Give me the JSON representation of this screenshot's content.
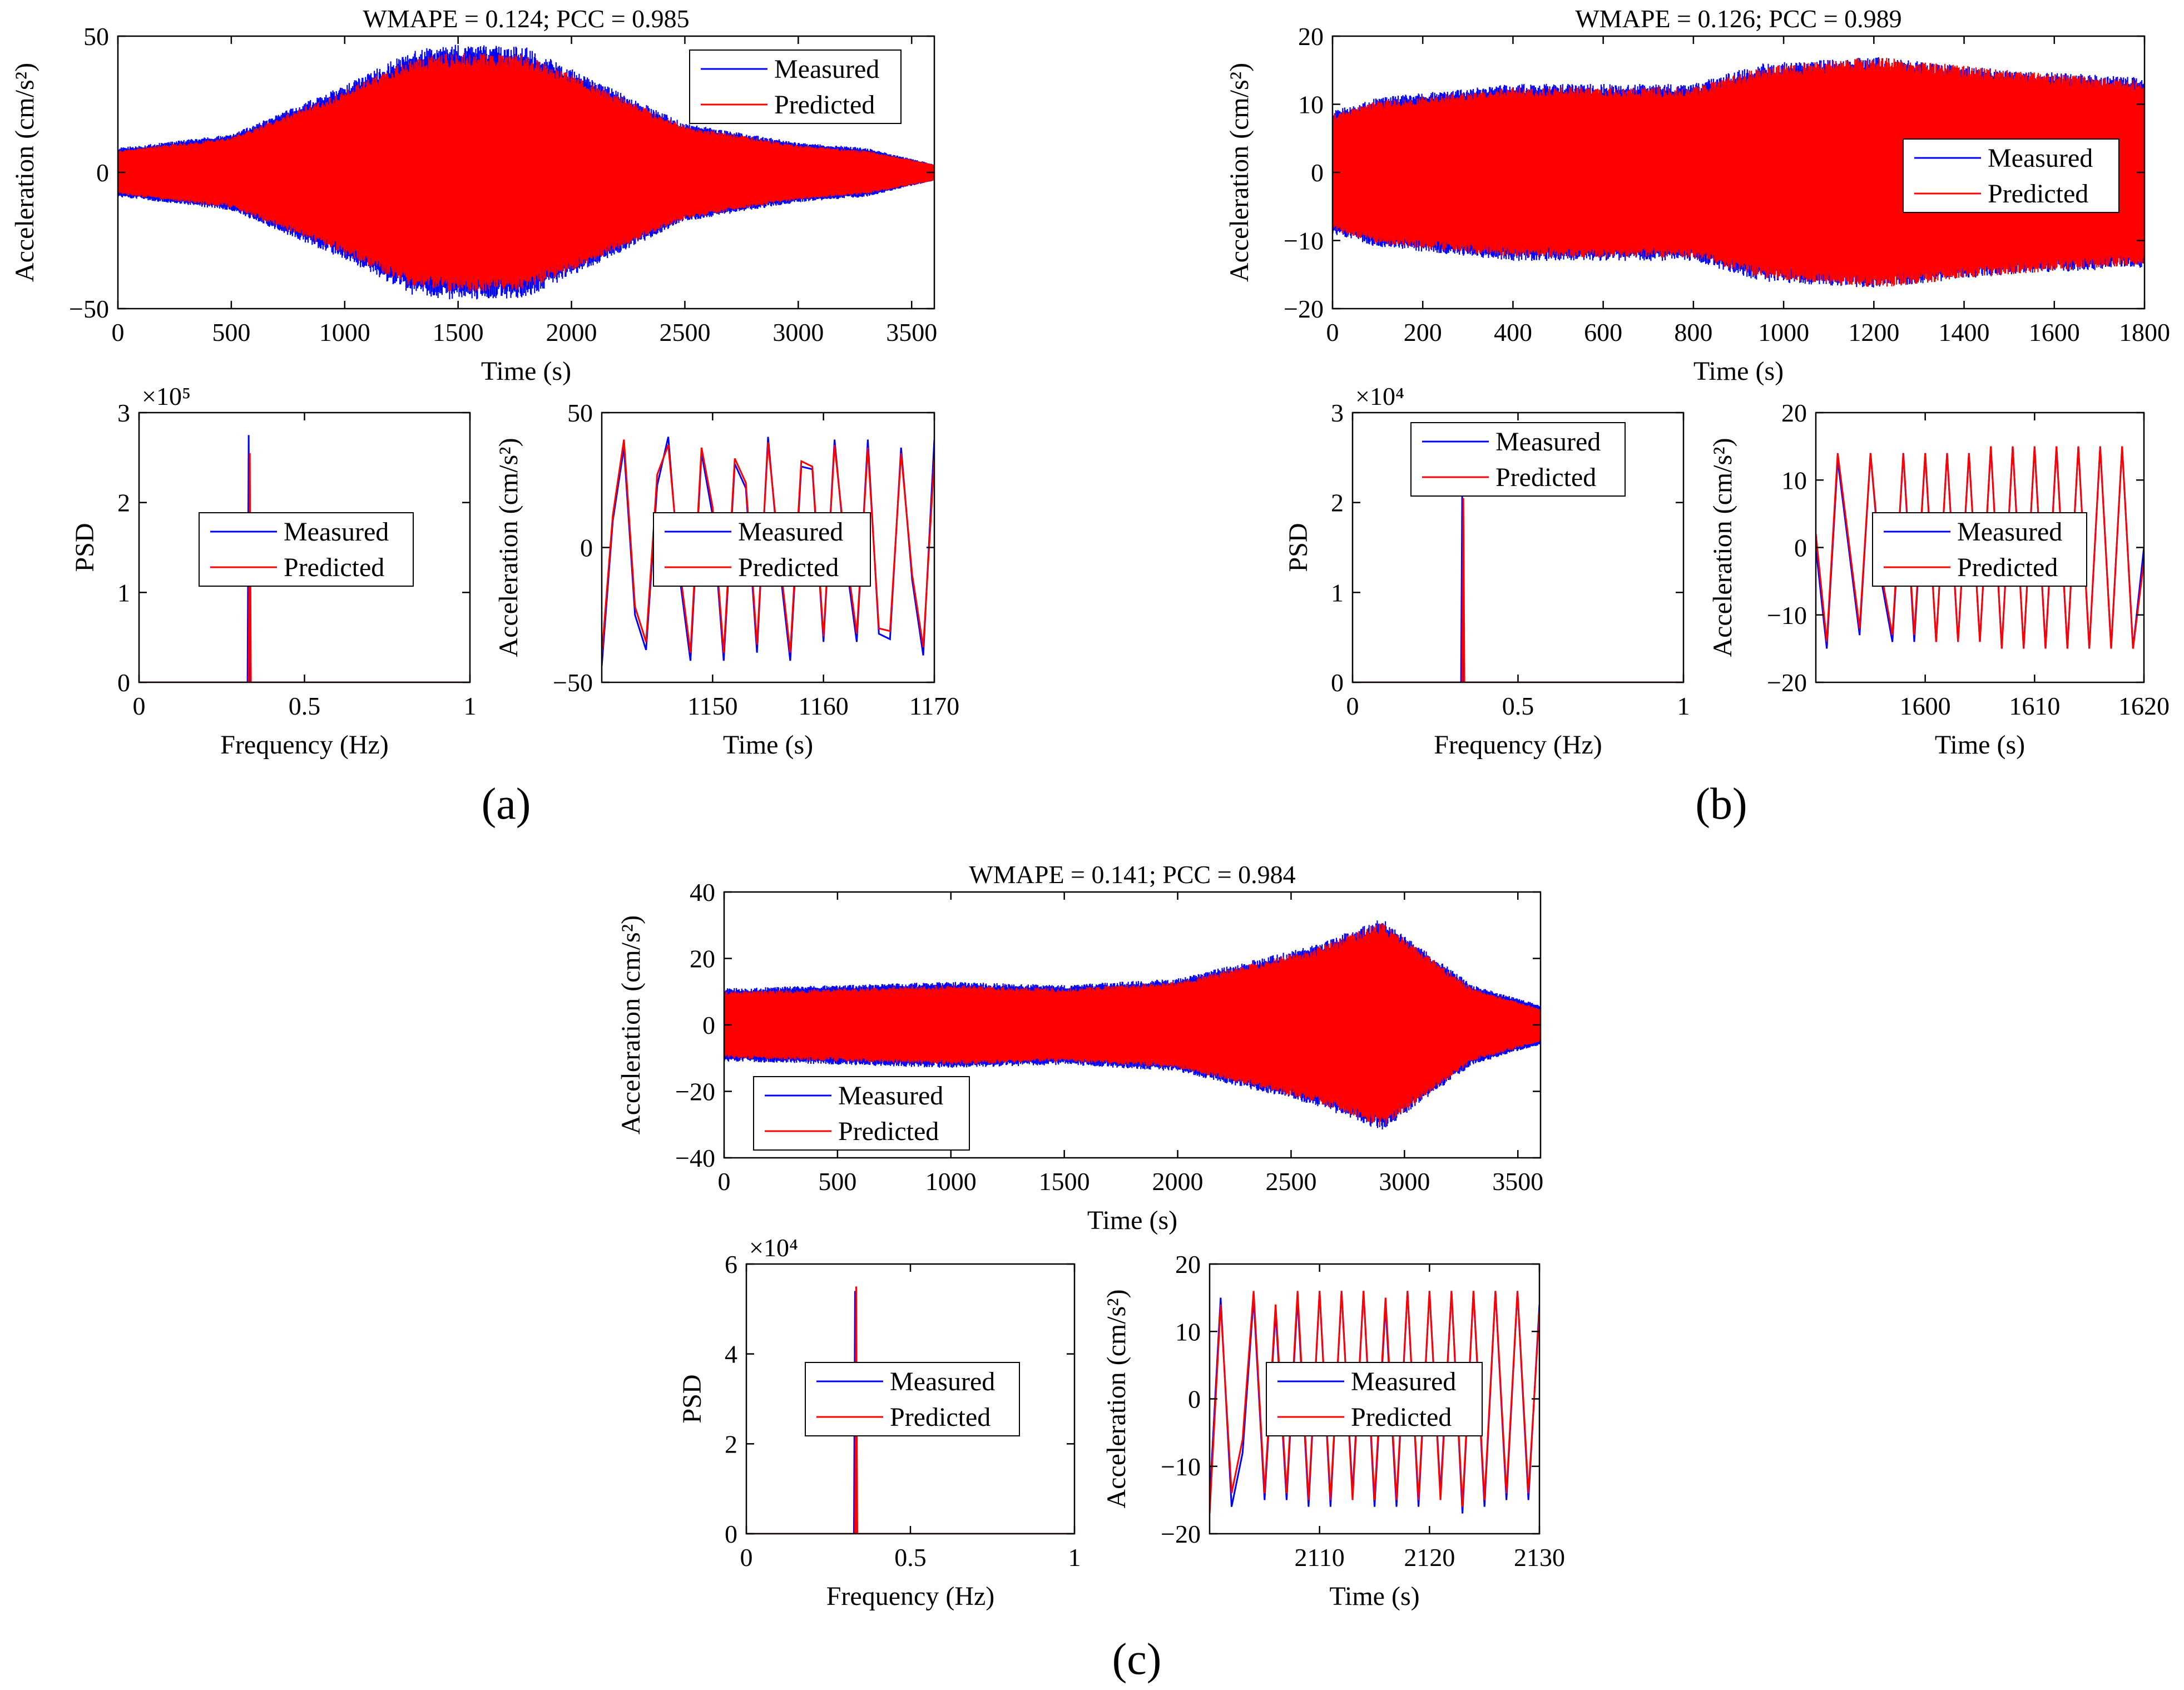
{
  "colors": {
    "measured": "#0000ff",
    "predicted": "#ff0000",
    "axes": "#000000",
    "background": "#ffffff"
  },
  "legend": {
    "measured": "Measured",
    "predicted": "Predicted"
  },
  "panel_labels": {
    "a": "(a)",
    "b": "(b)",
    "c": "(c)"
  },
  "chart_data": [
    {
      "id": "a-main",
      "type": "line",
      "title": "WMAPE =  0.124; PCC = 0.985",
      "xlabel": "Time (s)",
      "ylabel": "Acceleration (cm/s²)",
      "xlim": [
        0,
        3600
      ],
      "ylim": [
        -50,
        50
      ],
      "xticks": [
        0,
        500,
        1000,
        1500,
        2000,
        2500,
        3000,
        3500
      ],
      "yticks": [
        -50,
        0,
        50
      ],
      "legend_position": "top-right",
      "series": [
        {
          "name": "Measured",
          "envelope": {
            "t": [
              0,
              500,
              1000,
              1300,
              1500,
              1800,
              2000,
              2500,
              3000,
              3300,
              3600
            ],
            "amp": [
              9,
              14,
              32,
              45,
              47,
              46,
              38,
              18,
              11,
              9,
              3
            ]
          }
        },
        {
          "name": "Predicted",
          "envelope": {
            "t": [
              0,
              500,
              1000,
              1300,
              1500,
              1800,
              2000,
              2500,
              3000,
              3300,
              3600
            ],
            "amp": [
              8,
              13,
              30,
              42,
              44,
              43,
              36,
              17,
              10,
              8,
              3
            ]
          }
        }
      ]
    },
    {
      "id": "a-psd",
      "type": "line",
      "xlabel": "Frequency (Hz)",
      "ylabel": "PSD",
      "xlim": [
        0,
        1
      ],
      "ylim": [
        0,
        300000
      ],
      "xticks": [
        0,
        0.5,
        1
      ],
      "yticks": [
        0,
        1,
        2,
        3
      ],
      "ytick_labels": [
        "0",
        "1",
        "2",
        "3"
      ],
      "y_exponent": "×10⁵",
      "legend_position": "center",
      "series": [
        {
          "name": "Measured",
          "peak_freq": 0.333,
          "peak_value": 275000
        },
        {
          "name": "Predicted",
          "peak_freq": 0.333,
          "peak_value": 255000
        }
      ]
    },
    {
      "id": "a-zoom",
      "type": "line",
      "xlabel": "Time (s)",
      "ylabel": "Acceleration (cm/s²)",
      "xlim": [
        1140,
        1170
      ],
      "ylim": [
        -50,
        50
      ],
      "xticks": [
        1150,
        1160,
        1170
      ],
      "yticks": [
        -50,
        0,
        50
      ],
      "legend_position": "center",
      "series": [
        {
          "name": "Measured",
          "x": [
            1140,
            1141,
            1142,
            1143,
            1144,
            1145,
            1146,
            1147,
            1148,
            1149,
            1150,
            1151,
            1152,
            1153,
            1154,
            1155,
            1156,
            1157,
            1158,
            1159,
            1160,
            1161,
            1162,
            1163,
            1164,
            1165,
            1166,
            1167,
            1168,
            1169,
            1170
          ],
          "y": [
            -44,
            10,
            37,
            -25,
            -38,
            23,
            41,
            -10,
            -42,
            35,
            12,
            -42,
            31,
            22,
            -39,
            41,
            -5,
            -42,
            30,
            29,
            -35,
            40,
            -4,
            -35,
            40,
            -32,
            -34,
            37,
            -12,
            -40,
            40
          ]
        },
        {
          "name": "Predicted",
          "x": [
            1140,
            1141,
            1142,
            1143,
            1144,
            1145,
            1146,
            1147,
            1148,
            1149,
            1150,
            1151,
            1152,
            1153,
            1154,
            1155,
            1156,
            1157,
            1158,
            1159,
            1160,
            1161,
            1162,
            1163,
            1164,
            1165,
            1166,
            1167,
            1168,
            1169,
            1170
          ],
          "y": [
            -40,
            12,
            40,
            -22,
            -35,
            27,
            38,
            -7,
            -39,
            37,
            15,
            -39,
            33,
            24,
            -36,
            39,
            -2,
            -39,
            32,
            30,
            -33,
            38,
            -1,
            -32,
            37,
            -30,
            -31,
            35,
            -10,
            -37,
            33
          ]
        }
      ]
    },
    {
      "id": "b-main",
      "type": "line",
      "title": "WMAPE =  0.126; PCC = 0.989",
      "xlabel": "Time (s)",
      "ylabel": "Acceleration (cm/s²)",
      "xlim": [
        0,
        1800
      ],
      "ylim": [
        -20,
        20
      ],
      "xticks": [
        0,
        200,
        400,
        600,
        800,
        1000,
        1200,
        1400,
        1600,
        1800
      ],
      "yticks": [
        -20,
        -10,
        0,
        10,
        20
      ],
      "legend_position": "right",
      "series": [
        {
          "name": "Measured",
          "envelope": {
            "t": [
              0,
              100,
              400,
              800,
              950,
              1200,
              1500,
              1800
            ],
            "amp": [
              9,
              11,
              13,
              13,
              16,
              17,
              15,
              14
            ]
          }
        },
        {
          "name": "Predicted",
          "envelope": {
            "t": [
              0,
              100,
              400,
              800,
              950,
              1200,
              1500,
              1800
            ],
            "amp": [
              8.5,
              10.5,
              12.5,
              12.5,
              15.5,
              17,
              15,
              13.5
            ]
          }
        }
      ]
    },
    {
      "id": "b-psd",
      "type": "line",
      "xlabel": "Frequency (Hz)",
      "ylabel": "PSD",
      "xlim": [
        0,
        1
      ],
      "ylim": [
        0,
        30000
      ],
      "xticks": [
        0,
        0.5,
        1
      ],
      "yticks": [
        0,
        1,
        2,
        3
      ],
      "ytick_labels": [
        "0",
        "1",
        "2",
        "3"
      ],
      "y_exponent": "×10⁴",
      "legend_position": "top-center",
      "series": [
        {
          "name": "Measured",
          "peak_freq": 0.333,
          "peak_value": 21000
        },
        {
          "name": "Predicted",
          "peak_freq": 0.333,
          "peak_value": 20500
        }
      ]
    },
    {
      "id": "b-zoom",
      "type": "line",
      "xlabel": "Time (s)",
      "ylabel": "Acceleration (cm/s²)",
      "xlim": [
        1590,
        1620
      ],
      "ylim": [
        -20,
        20
      ],
      "xticks": [
        1600,
        1610,
        1620
      ],
      "yticks": [
        -20,
        -10,
        0,
        10,
        20
      ],
      "legend_position": "center",
      "series": [
        {
          "name": "Measured",
          "x": [
            1590,
            1591,
            1592,
            1593,
            1594,
            1595,
            1596,
            1597,
            1598,
            1599,
            1600,
            1601,
            1602,
            1603,
            1604,
            1605,
            1606,
            1607,
            1608,
            1609,
            1610,
            1611,
            1612,
            1613,
            1614,
            1615,
            1616,
            1617,
            1618,
            1619,
            1620
          ],
          "y": [
            0,
            -15,
            13,
            0,
            -13,
            14,
            -5,
            -14,
            14,
            -14,
            14,
            -14,
            14,
            -14,
            14,
            -14,
            15,
            -15,
            15,
            -15,
            15,
            -15,
            15,
            -15,
            15,
            -15,
            15,
            -15,
            15,
            -15,
            0
          ]
        },
        {
          "name": "Predicted",
          "x": [
            1590,
            1591,
            1592,
            1593,
            1594,
            1595,
            1596,
            1597,
            1598,
            1599,
            1600,
            1601,
            1602,
            1603,
            1604,
            1605,
            1606,
            1607,
            1608,
            1609,
            1610,
            1611,
            1612,
            1613,
            1614,
            1615,
            1616,
            1617,
            1618,
            1619,
            1620
          ],
          "y": [
            2,
            -14,
            14,
            1,
            -12,
            14,
            -4,
            -13,
            14,
            -13,
            14,
            -14,
            14,
            -14,
            14,
            -14,
            15,
            -15,
            15,
            -15,
            15,
            -15,
            15,
            -15,
            15,
            -15,
            15,
            -15,
            15,
            -15,
            -2
          ]
        }
      ]
    },
    {
      "id": "c-main",
      "type": "line",
      "title": "WMAPE =  0.141; PCC = 0.984",
      "xlabel": "Time (s)",
      "ylabel": "Acceleration (cm/s²)",
      "xlim": [
        0,
        3600
      ],
      "ylim": [
        -40,
        40
      ],
      "xticks": [
        0,
        500,
        1000,
        1500,
        2000,
        2500,
        3000,
        3500
      ],
      "yticks": [
        -40,
        -20,
        0,
        20,
        40
      ],
      "legend_position": "bottom-left",
      "series": [
        {
          "name": "Measured",
          "envelope": {
            "t": [
              0,
              500,
              1000,
              1500,
              2000,
              2300,
              2600,
              2900,
              3100,
              3300,
              3600
            ],
            "amp": [
              11,
              12,
              13,
              12,
              14,
              19,
              24,
              32,
              22,
              12,
              6
            ]
          }
        },
        {
          "name": "Predicted",
          "envelope": {
            "t": [
              0,
              500,
              1000,
              1500,
              2000,
              2300,
              2600,
              2900,
              3100,
              3300,
              3600
            ],
            "amp": [
              10,
              11,
              12,
              11,
              13,
              18,
              23,
              31,
              21,
              11,
              5
            ]
          }
        }
      ]
    },
    {
      "id": "c-psd",
      "type": "line",
      "xlabel": "Frequency (Hz)",
      "ylabel": "PSD",
      "xlim": [
        0,
        1
      ],
      "ylim": [
        0,
        60000
      ],
      "xticks": [
        0,
        0.5,
        1
      ],
      "yticks": [
        0,
        2,
        4,
        6
      ],
      "ytick_labels": [
        "0",
        "2",
        "4",
        "6"
      ],
      "y_exponent": "×10⁴",
      "legend_position": "center",
      "series": [
        {
          "name": "Measured",
          "peak_freq": 0.333,
          "peak_value": 54000
        },
        {
          "name": "Predicted",
          "peak_freq": 0.333,
          "peak_value": 55000
        }
      ]
    },
    {
      "id": "c-zoom",
      "type": "line",
      "xlabel": "Time (s)",
      "ylabel": "Acceleration (cm/s²)",
      "xlim": [
        2100,
        2130
      ],
      "ylim": [
        -20,
        20
      ],
      "xticks": [
        2110,
        2120,
        2130
      ],
      "yticks": [
        -20,
        -10,
        0,
        10,
        20
      ],
      "legend_position": "center",
      "series": [
        {
          "name": "Measured",
          "x": [
            2100,
            2101,
            2102,
            2103,
            2104,
            2105,
            2106,
            2107,
            2108,
            2109,
            2110,
            2111,
            2112,
            2113,
            2114,
            2115,
            2116,
            2117,
            2118,
            2119,
            2120,
            2121,
            2122,
            2123,
            2124,
            2125,
            2126,
            2127,
            2128,
            2129,
            2130
          ],
          "y": [
            -15,
            15,
            -16,
            -8,
            15,
            -15,
            13,
            -15,
            15,
            -16,
            16,
            -16,
            16,
            -14,
            16,
            -16,
            14,
            -16,
            16,
            -16,
            16,
            -14,
            16,
            -17,
            16,
            -16,
            16,
            -15,
            16,
            -15,
            14
          ]
        },
        {
          "name": "Predicted",
          "x": [
            2100,
            2101,
            2102,
            2103,
            2104,
            2105,
            2106,
            2107,
            2108,
            2109,
            2110,
            2111,
            2112,
            2113,
            2114,
            2115,
            2116,
            2117,
            2118,
            2119,
            2120,
            2121,
            2122,
            2123,
            2124,
            2125,
            2126,
            2127,
            2128,
            2129,
            2130
          ],
          "y": [
            -17,
            14,
            -14,
            -6,
            16,
            -14,
            14,
            -14,
            16,
            -15,
            16,
            -15,
            16,
            -15,
            16,
            -15,
            15,
            -15,
            16,
            -15,
            16,
            -15,
            16,
            -16,
            16,
            -15,
            16,
            -14,
            16,
            -14,
            13
          ]
        }
      ]
    }
  ]
}
